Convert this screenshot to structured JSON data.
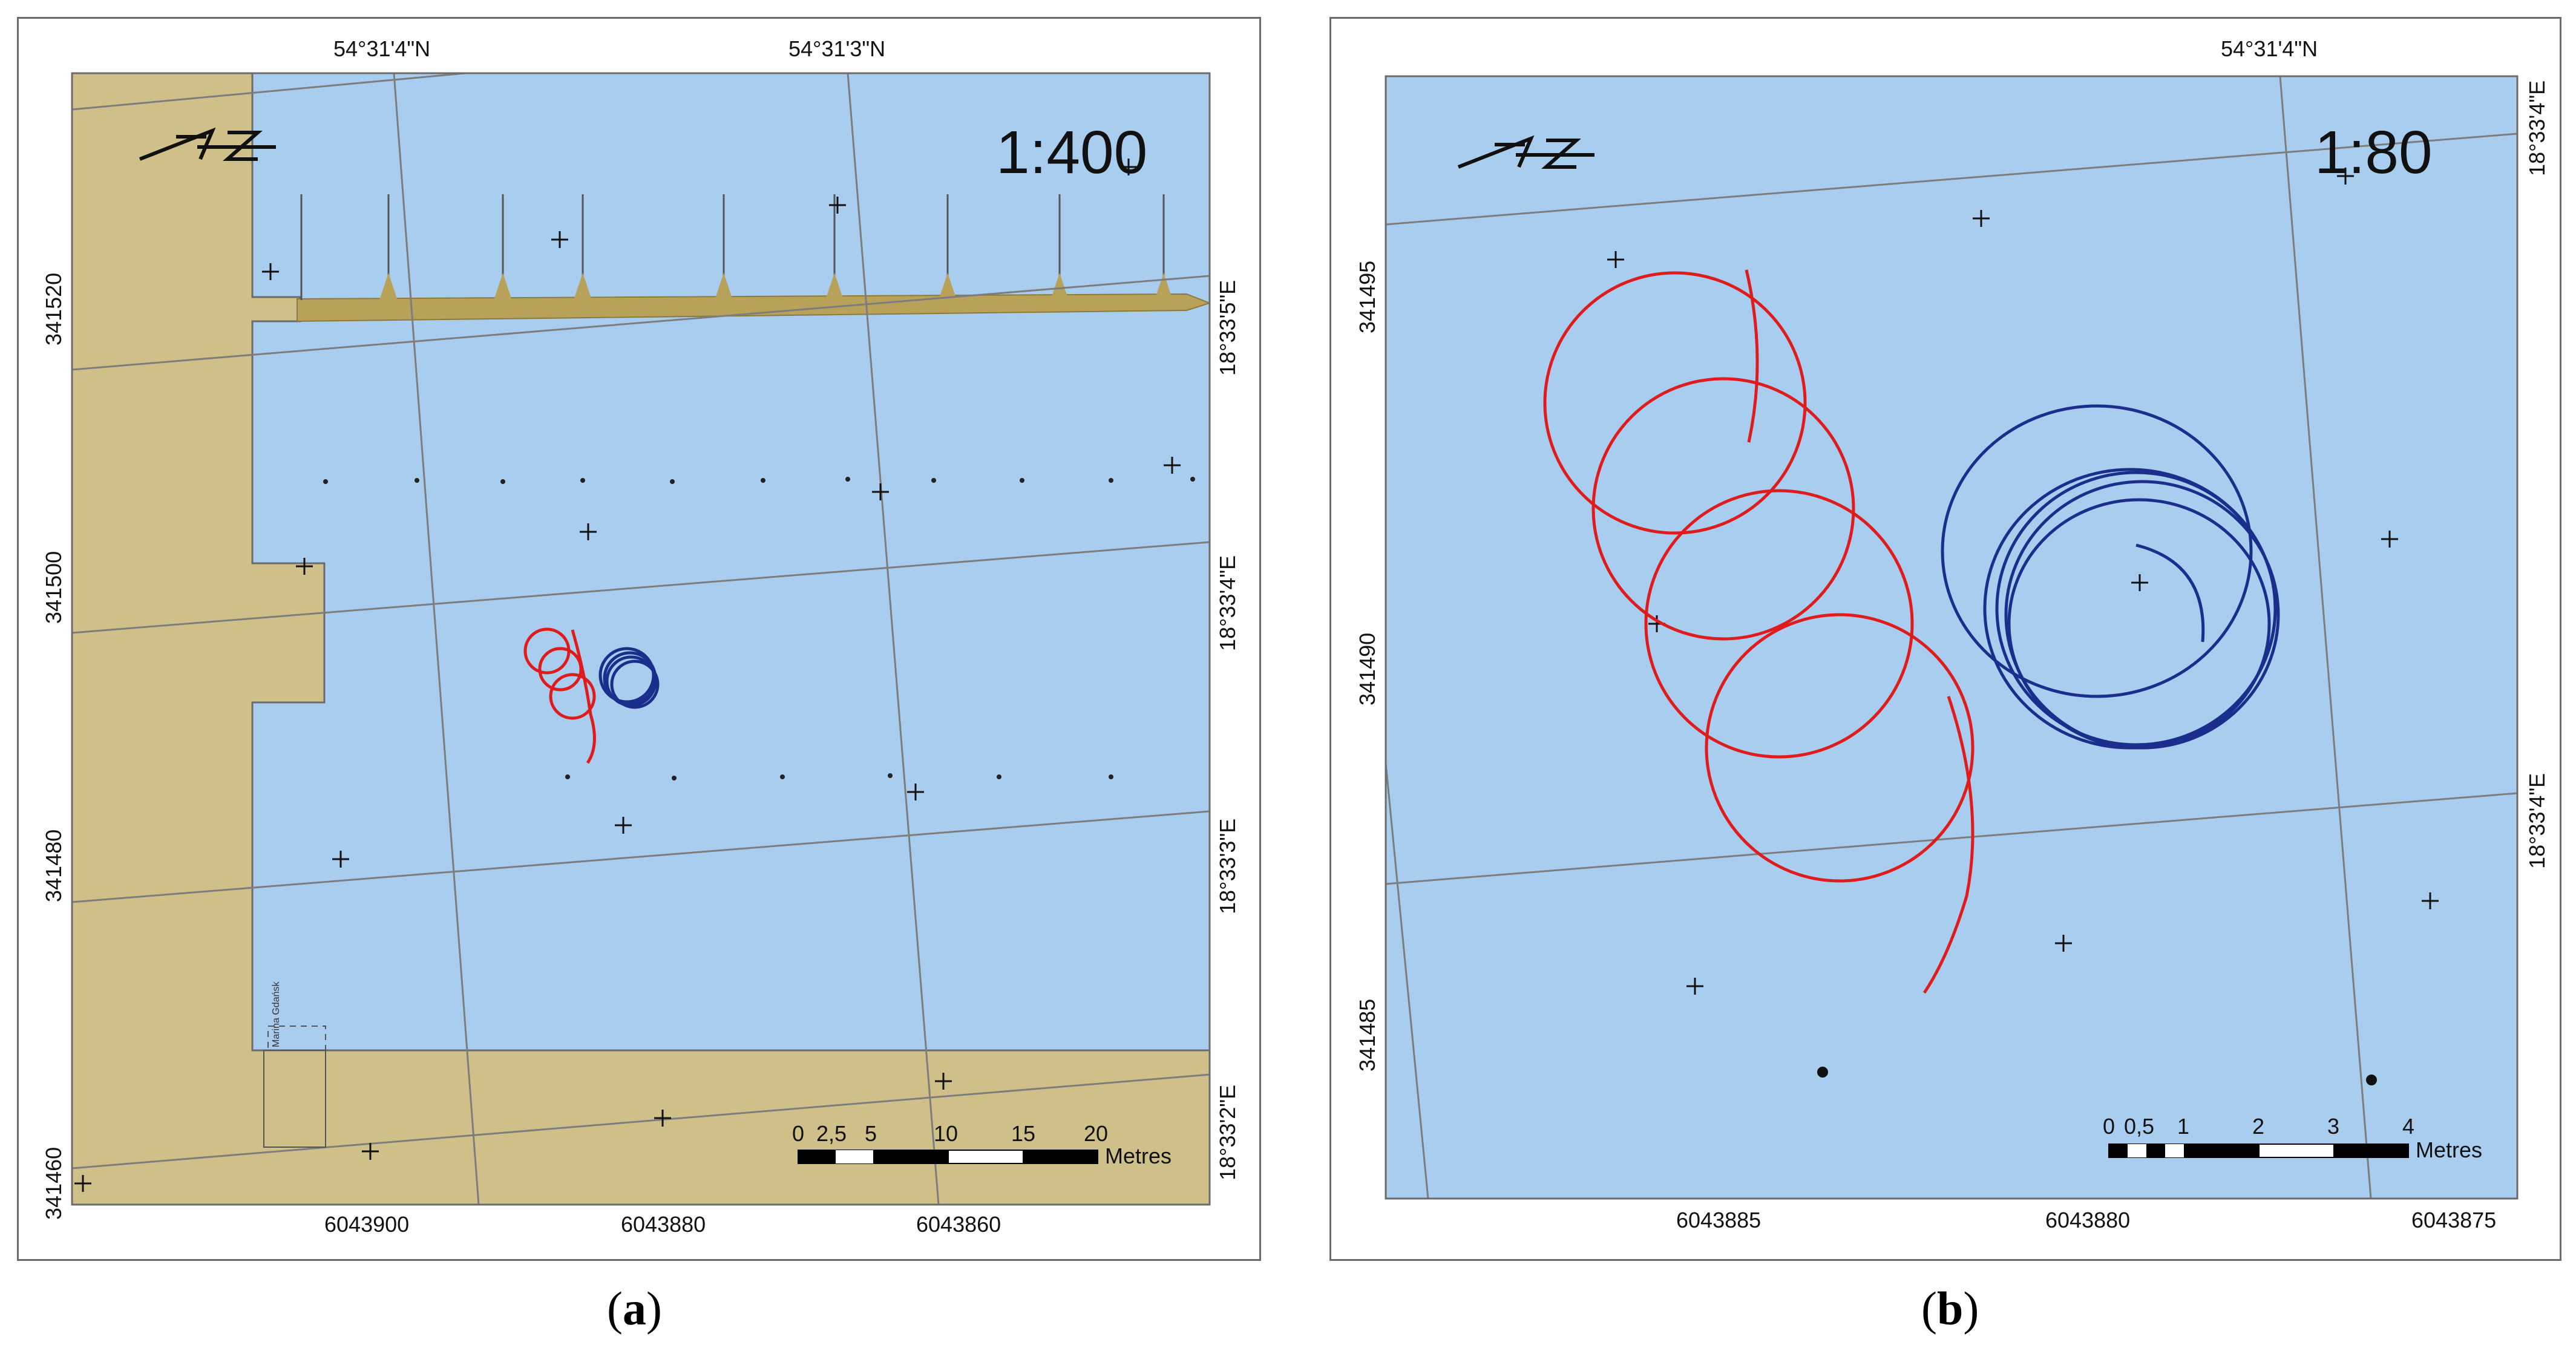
{
  "panels": [
    {
      "id": "a",
      "caption_open": "(",
      "caption_letter": "a",
      "caption_close": ")",
      "scale": "1:400",
      "lat_labels": [
        "54°31'4\"N",
        "54°31'3\"N"
      ],
      "lon_labels": [
        "18°33'5\"E",
        "18°33'4\"E",
        "18°33'3\"E",
        "18°33'2\"E"
      ],
      "y_labels": [
        "341520",
        "341500",
        "341480",
        "341460"
      ],
      "x_labels": [
        "6043900",
        "6043880",
        "6043860"
      ],
      "scalebar_ticks": [
        "0",
        "2,5",
        "5",
        "10",
        "15",
        "20"
      ],
      "scalebar_unit": "Metres",
      "dock_note": "Marina Gdańsk"
    },
    {
      "id": "b",
      "caption_open": "(",
      "caption_letter": "b",
      "caption_close": ")",
      "scale": "1:80",
      "lat_labels": [
        "54°31'4\"N"
      ],
      "lon_labels": [
        "18°33'4\"E",
        "18°33'4\"E"
      ],
      "y_labels": [
        "341495",
        "341490",
        "341485"
      ],
      "x_labels": [
        "6043885",
        "6043880",
        "6043875"
      ],
      "scalebar_ticks": [
        "0",
        "0,5",
        "1",
        "2",
        "3",
        "4"
      ],
      "scalebar_unit": "Metres"
    }
  ],
  "colors": {
    "water": "#a9cdee",
    "land": "#cfc08a",
    "pier": "#b8a25a",
    "track_red": "#e01b1b",
    "track_blue": "#1a2f8c",
    "grid": "#7d7d7d"
  },
  "icons": [
    "north-arrow-icon",
    "cross-marker-icon"
  ]
}
